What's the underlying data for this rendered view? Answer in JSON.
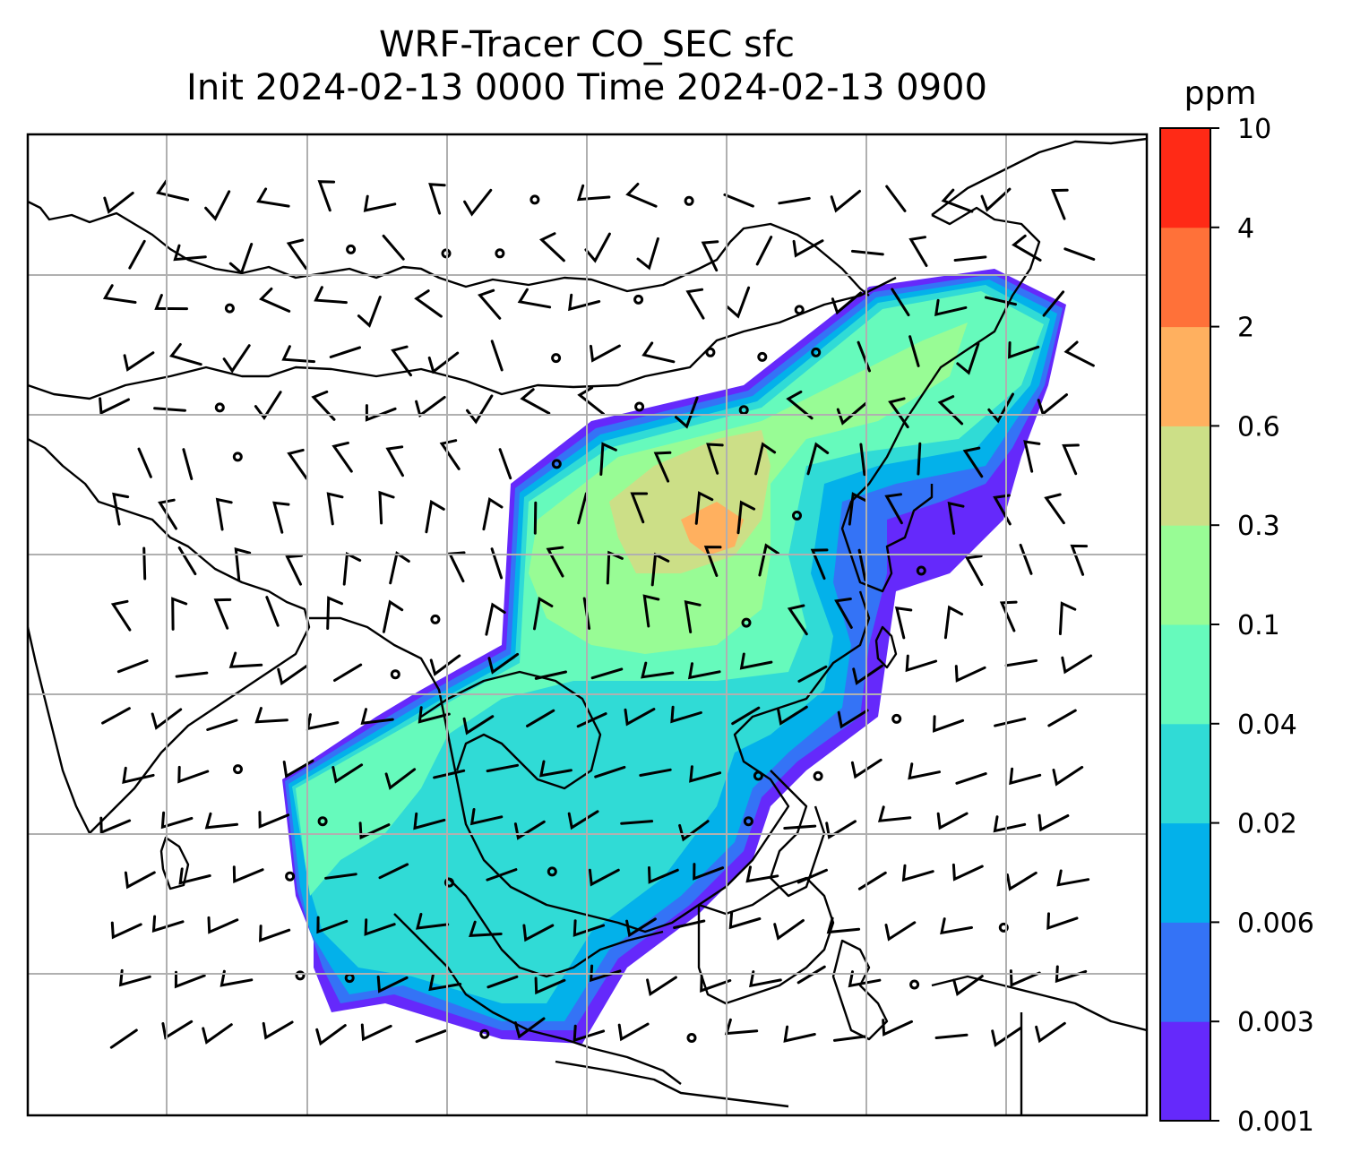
{
  "title": {
    "line1": "WRF-Tracer CO_SEC sfc",
    "line2": "Init 2024-02-13 0000 Time 2024-02-13 0900"
  },
  "colorbar": {
    "unit": "ppm",
    "levels": [
      "0.001",
      "0.003",
      "0.006",
      "0.02",
      "0.04",
      "0.1",
      "0.3",
      "0.6",
      "2",
      "4",
      "10"
    ],
    "colors": [
      "#6529fb",
      "#3473f6",
      "#03b1ea",
      "#30dbd6",
      "#66fabc",
      "#98fc95",
      "#ccdf87",
      "#ffb05f",
      "#ff7139",
      "#ff2a16"
    ]
  },
  "map": {
    "gridlines": true,
    "plume_bands": [
      {
        "level": 0,
        "color": "#6529fb"
      },
      {
        "level": 1,
        "color": "#3473f6"
      },
      {
        "level": 2,
        "color": "#03b1ea"
      },
      {
        "level": 3,
        "color": "#30dbd6"
      },
      {
        "level": 4,
        "color": "#66fabc"
      },
      {
        "level": 5,
        "color": "#98fc95"
      },
      {
        "level": 6,
        "color": "#ccdf87"
      },
      {
        "level": 7,
        "color": "#ffb05f"
      }
    ],
    "overlay": "wind barbs",
    "coastlines_color": "#000000"
  }
}
